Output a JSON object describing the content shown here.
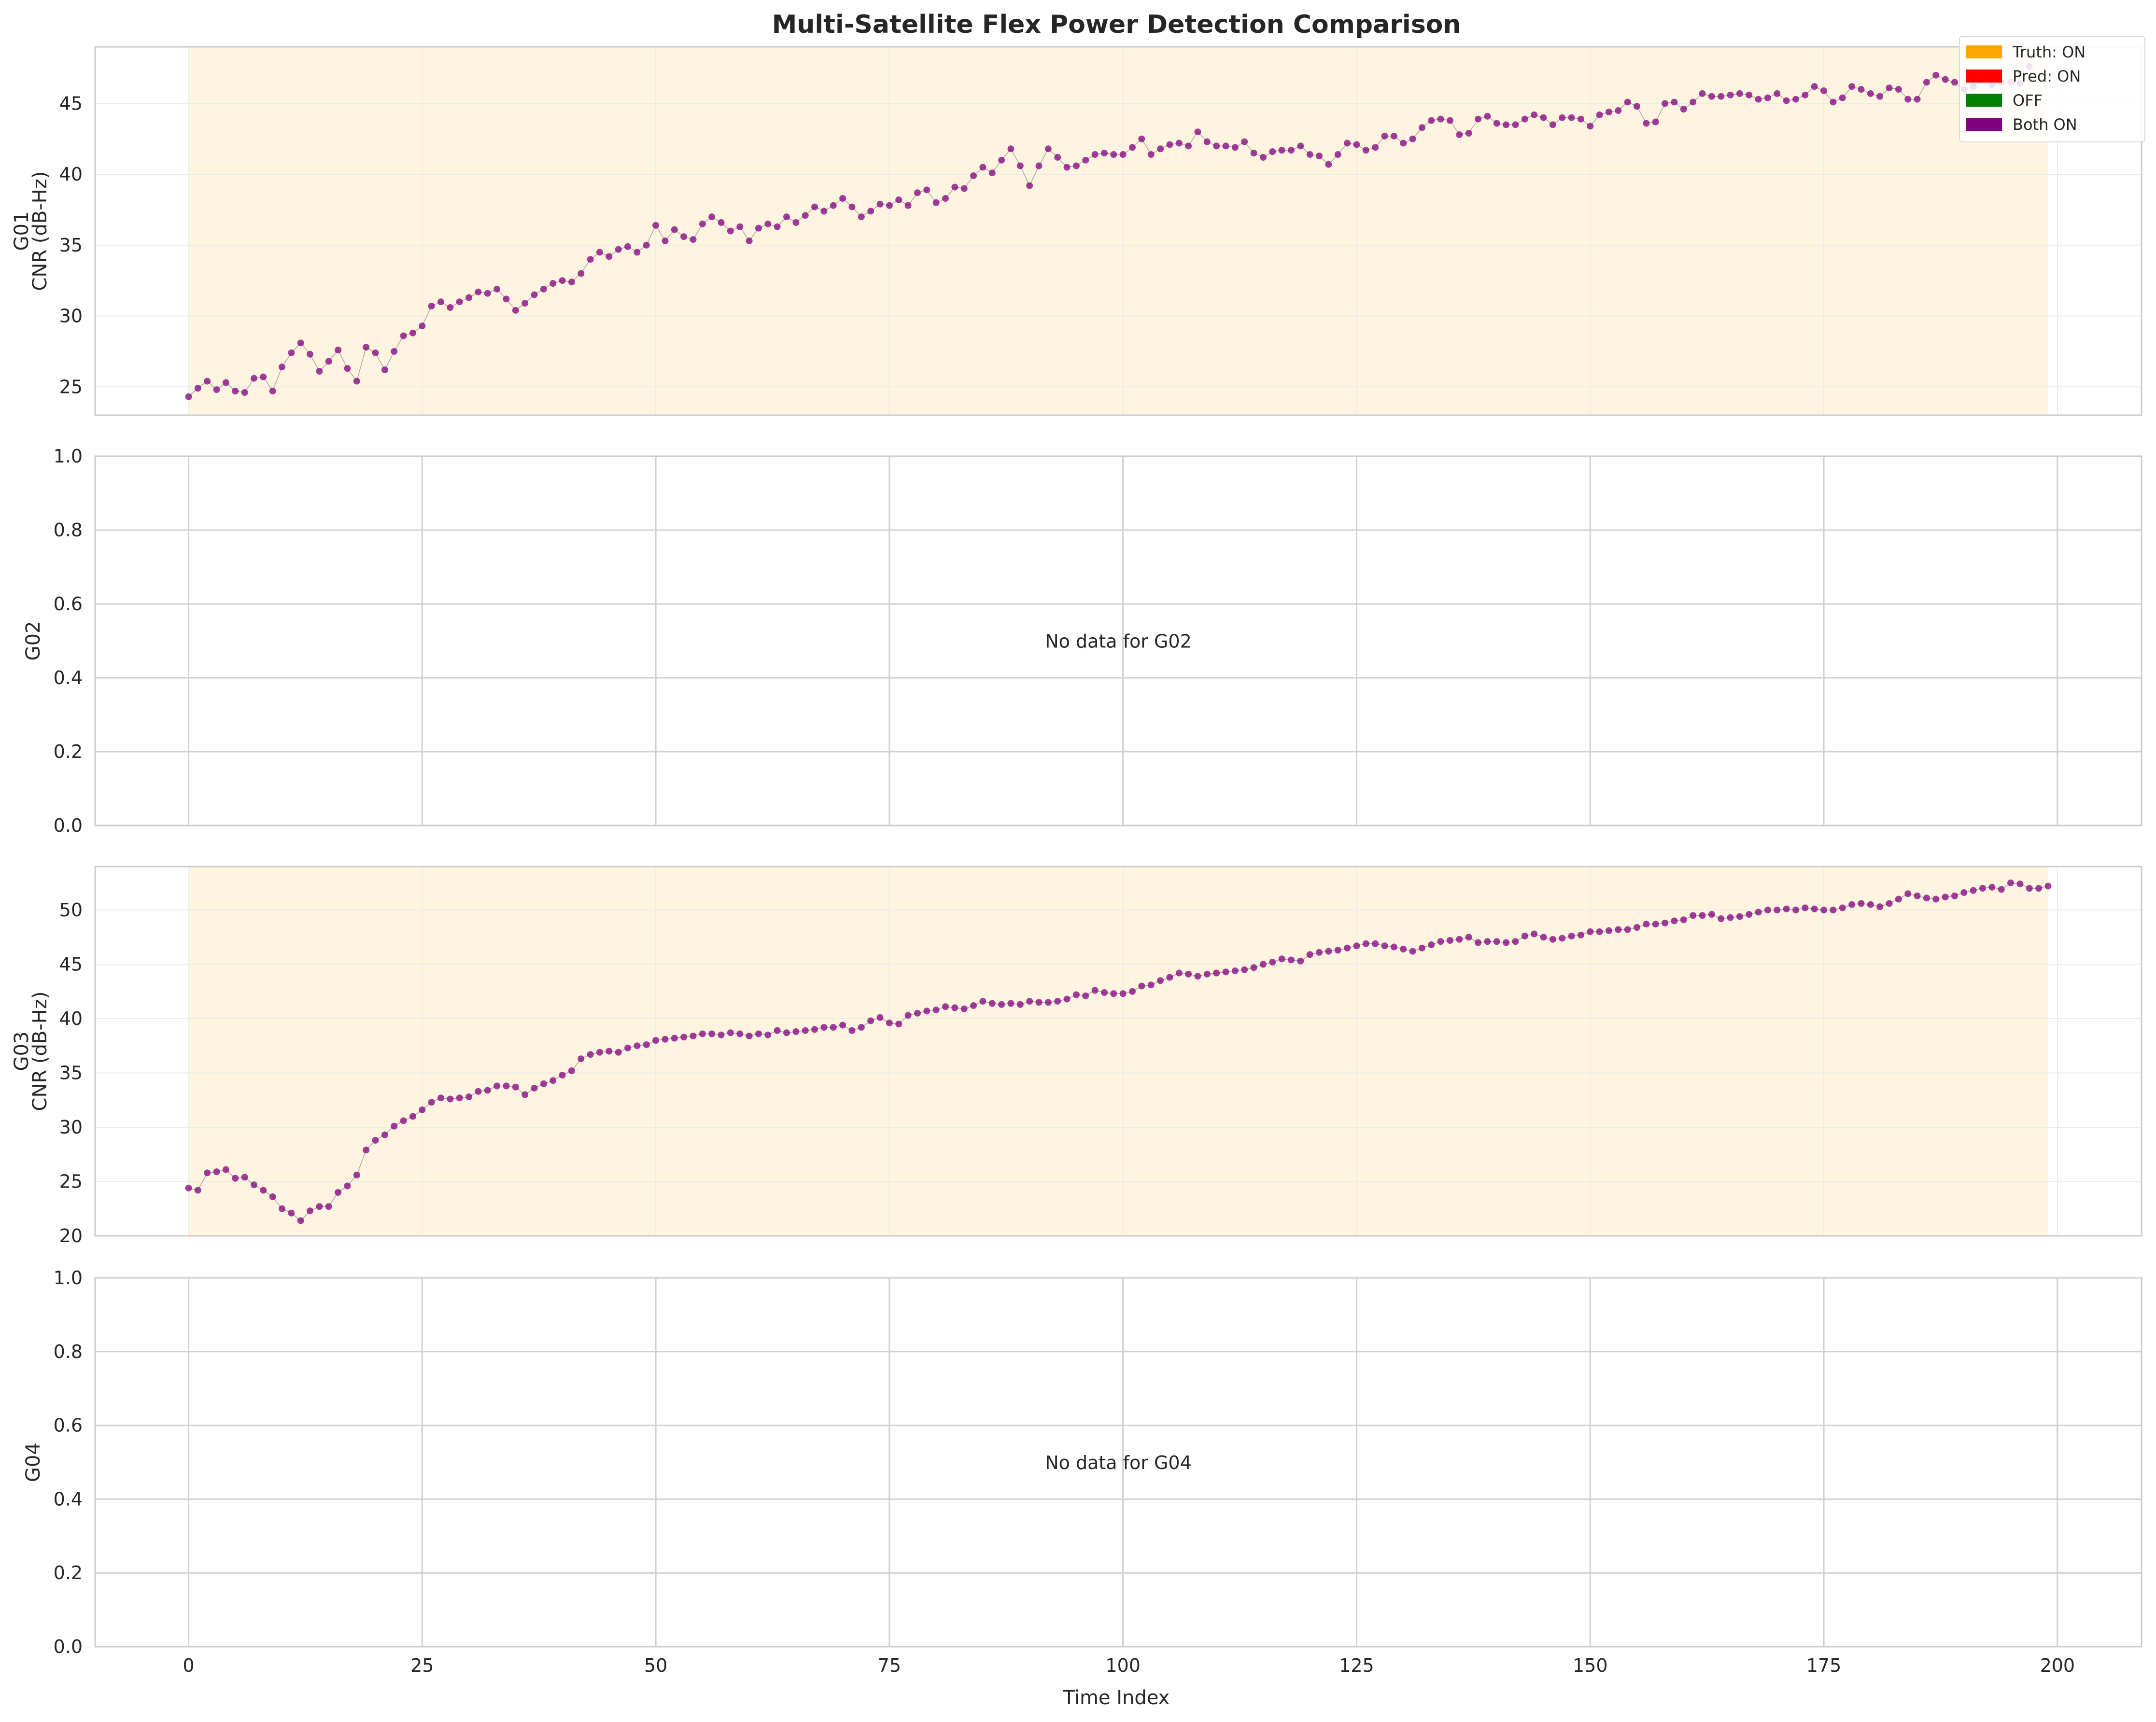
{
  "title": "Multi-Satellite Flex Power Detection Comparison",
  "xlabel": "Time Index",
  "x_ticks": [
    0,
    25,
    50,
    75,
    100,
    125,
    150,
    175,
    200
  ],
  "xlim": [
    -10,
    209
  ],
  "legend": [
    {
      "label": "Truth: ON",
      "color": "#ffa500"
    },
    {
      "label": "Pred: ON",
      "color": "#ff0000"
    },
    {
      "label": "OFF",
      "color": "#008000"
    },
    {
      "label": "Both ON",
      "color": "#800080"
    }
  ],
  "chart_data": [
    {
      "type": "line",
      "satellite": "G01",
      "ylabel_line1": "G01",
      "ylabel_line2": "CNR (dB-Hz)",
      "ylim": [
        23,
        49
      ],
      "y_ticks": [
        25,
        30,
        35,
        40,
        45
      ],
      "truth_on_span": [
        0,
        199
      ],
      "marker_color": "#800080",
      "x_start": 0,
      "values": [
        24.3,
        24.9,
        25.4,
        24.8,
        25.3,
        24.7,
        24.6,
        25.6,
        25.7,
        24.7,
        26.4,
        27.4,
        28.1,
        27.3,
        26.1,
        26.8,
        27.6,
        26.3,
        25.4,
        27.8,
        27.4,
        26.2,
        27.5,
        28.6,
        28.8,
        29.3,
        30.7,
        31.0,
        30.6,
        31.0,
        31.3,
        31.7,
        31.6,
        31.9,
        31.2,
        30.4,
        30.9,
        31.5,
        31.9,
        32.3,
        32.5,
        32.4,
        33.0,
        34.0,
        34.5,
        34.2,
        34.7,
        34.9,
        34.5,
        35.0,
        36.4,
        35.3,
        36.1,
        35.6,
        35.4,
        36.5,
        37.0,
        36.6,
        36.0,
        36.3,
        35.3,
        36.2,
        36.5,
        36.3,
        37.0,
        36.6,
        37.1,
        37.7,
        37.4,
        37.8,
        38.3,
        37.7,
        37.0,
        37.4,
        37.9,
        37.8,
        38.2,
        37.8,
        38.7,
        38.9,
        38.0,
        38.3,
        39.1,
        39.0,
        39.9,
        40.5,
        40.1,
        41.0,
        41.8,
        40.6,
        39.2,
        40.6,
        41.8,
        41.2,
        40.5,
        40.6,
        41.0,
        41.4,
        41.5,
        41.4,
        41.4,
        41.9,
        42.5,
        41.4,
        41.8,
        42.1,
        42.2,
        42.0,
        43.0,
        42.3,
        42.0,
        42.0,
        41.9,
        42.3,
        41.5,
        41.2,
        41.6,
        41.7,
        41.7,
        42.0,
        41.4,
        41.3,
        40.7,
        41.4,
        42.2,
        42.1,
        41.7,
        41.9,
        42.7,
        42.7,
        42.2,
        42.5,
        43.3,
        43.8,
        43.9,
        43.8,
        42.8,
        42.9,
        43.9,
        44.1,
        43.6,
        43.5,
        43.5,
        43.9,
        44.2,
        44.0,
        43.5,
        44.0,
        44.0,
        43.9,
        43.4,
        44.2,
        44.4,
        44.5,
        45.1,
        44.8,
        43.6,
        43.7,
        45.0,
        45.1,
        44.6,
        45.1,
        45.7,
        45.5,
        45.5,
        45.6,
        45.7,
        45.6,
        45.3,
        45.4,
        45.7,
        45.2,
        45.3,
        45.6,
        46.2,
        45.9,
        45.1,
        45.4,
        46.2,
        46.0,
        45.7,
        45.5,
        46.1,
        46.0,
        45.3,
        45.3,
        46.5,
        47.0,
        46.7,
        46.5,
        46.0,
        46.2,
        46.7,
        46.3,
        46.5,
        46.5,
        46.4,
        47.6
      ]
    },
    {
      "type": "line",
      "satellite": "G02",
      "ylabel": "G02",
      "ylim": [
        0,
        1
      ],
      "y_ticks": [
        "0.0",
        "0.2",
        "0.4",
        "0.6",
        "0.8",
        "1.0"
      ],
      "no_data_text": "No data for G02"
    },
    {
      "type": "line",
      "satellite": "G03",
      "ylabel_line1": "G03",
      "ylabel_line2": "CNR (dB-Hz)",
      "ylim": [
        20,
        54
      ],
      "y_ticks": [
        20,
        25,
        30,
        35,
        40,
        45,
        50
      ],
      "truth_on_span": [
        0,
        199
      ],
      "marker_color": "#800080",
      "x_start": 0,
      "values": [
        24.4,
        24.2,
        25.8,
        25.9,
        26.1,
        25.3,
        25.4,
        24.7,
        24.2,
        23.6,
        22.5,
        22.1,
        21.4,
        22.3,
        22.7,
        22.7,
        24.0,
        24.6,
        25.6,
        27.9,
        28.8,
        29.3,
        30.1,
        30.6,
        31.0,
        31.6,
        32.3,
        32.7,
        32.6,
        32.7,
        32.8,
        33.3,
        33.4,
        33.8,
        33.8,
        33.7,
        33.0,
        33.6,
        34.0,
        34.3,
        34.8,
        35.2,
        36.3,
        36.7,
        36.9,
        37.0,
        36.9,
        37.3,
        37.5,
        37.6,
        38.0,
        38.1,
        38.2,
        38.3,
        38.4,
        38.6,
        38.6,
        38.5,
        38.7,
        38.6,
        38.4,
        38.6,
        38.5,
        38.9,
        38.7,
        38.8,
        38.9,
        39.0,
        39.2,
        39.2,
        39.4,
        38.9,
        39.2,
        39.8,
        40.1,
        39.6,
        39.5,
        40.3,
        40.5,
        40.7,
        40.8,
        41.1,
        41.0,
        40.9,
        41.2,
        41.6,
        41.4,
        41.3,
        41.4,
        41.3,
        41.6,
        41.5,
        41.5,
        41.6,
        41.8,
        42.2,
        42.1,
        42.6,
        42.4,
        42.3,
        42.3,
        42.5,
        43.0,
        43.1,
        43.5,
        43.8,
        44.2,
        44.1,
        43.9,
        44.1,
        44.2,
        44.3,
        44.4,
        44.5,
        44.7,
        45.0,
        45.2,
        45.5,
        45.4,
        45.3,
        45.9,
        46.1,
        46.2,
        46.3,
        46.5,
        46.7,
        46.9,
        46.9,
        46.7,
        46.6,
        46.4,
        46.2,
        46.5,
        46.8,
        47.1,
        47.2,
        47.3,
        47.5,
        47.0,
        47.1,
        47.1,
        47.0,
        47.1,
        47.6,
        47.8,
        47.5,
        47.3,
        47.4,
        47.6,
        47.7,
        48.0,
        48.0,
        48.1,
        48.2,
        48.2,
        48.4,
        48.7,
        48.7,
        48.8,
        49.0,
        49.1,
        49.5,
        49.5,
        49.6,
        49.2,
        49.3,
        49.4,
        49.6,
        49.8,
        50.0,
        50.0,
        50.1,
        50.0,
        50.2,
        50.1,
        50.0,
        50.0,
        50.2,
        50.5,
        50.6,
        50.5,
        50.3,
        50.6,
        51.0,
        51.5,
        51.3,
        51.1,
        51.0,
        51.2,
        51.3,
        51.6,
        51.8,
        52.0,
        52.1,
        51.9,
        52.5,
        52.4,
        52.0,
        52.0,
        52.2
      ]
    },
    {
      "type": "line",
      "satellite": "G04",
      "ylabel": "G04",
      "ylim": [
        0,
        1
      ],
      "y_ticks": [
        "0.0",
        "0.2",
        "0.4",
        "0.6",
        "0.8",
        "1.0"
      ],
      "no_data_text": "No data for G04"
    }
  ]
}
